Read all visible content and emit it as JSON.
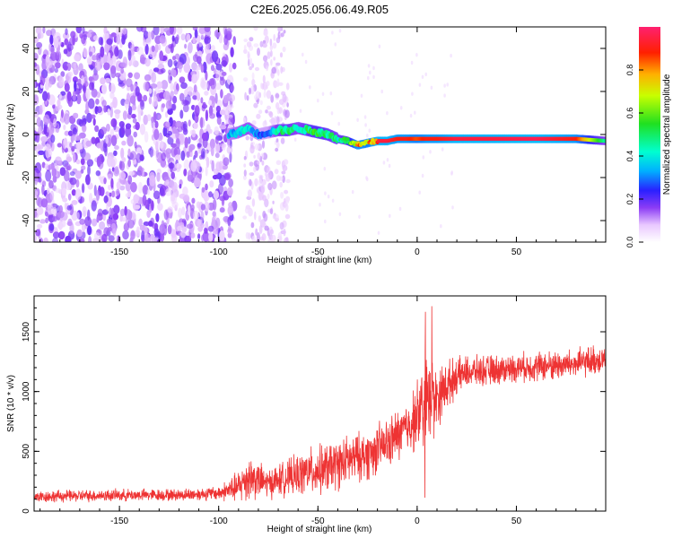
{
  "title": "C2E6.2025.056.06.49.R05",
  "chart_data": [
    {
      "type": "heatmap",
      "xlabel": "Height of straight line (km)",
      "ylabel": "Frequency (Hz)",
      "xlim": [
        -193,
        95
      ],
      "ylim": [
        -50,
        50
      ],
      "xticks": [
        -150,
        -100,
        -50,
        0,
        50
      ],
      "yticks": [
        -40,
        -20,
        0,
        20,
        40
      ],
      "colorbar": {
        "label": "Normalized spectral amplitude",
        "range": [
          0,
          1
        ],
        "ticks": [
          0.0,
          0.2,
          0.4,
          0.6,
          0.8
        ]
      },
      "signal_track": {
        "x": [
          -95,
          -90,
          -85,
          -80,
          -75,
          -70,
          -65,
          -60,
          -55,
          -50,
          -45,
          -40,
          -35,
          -30,
          -25,
          -20,
          -15,
          -10,
          -5,
          0,
          5,
          10,
          20,
          40,
          60,
          80,
          95
        ],
        "freq": [
          0,
          1,
          3,
          0,
          1,
          2,
          2,
          3,
          2,
          1,
          0,
          -2,
          -3,
          -5,
          -4,
          -3,
          -3,
          -2,
          -2,
          -2,
          -2,
          -2,
          -2,
          -2,
          -2,
          -2,
          -3
        ],
        "amplitude": [
          0.35,
          0.4,
          0.45,
          0.3,
          0.3,
          0.5,
          0.55,
          0.45,
          0.55,
          0.6,
          0.55,
          0.5,
          0.6,
          0.9,
          0.85,
          0.95,
          0.95,
          0.9,
          0.9,
          0.85,
          0.9,
          0.9,
          0.95,
          0.95,
          0.97,
          0.9,
          0.45
        ]
      },
      "noise_region_x": [
        -193,
        -92
      ]
    },
    {
      "type": "line",
      "xlabel": "Height of straight line (km)",
      "ylabel": "SNR (10 * v/v)",
      "xlim": [
        -193,
        95
      ],
      "ylim": [
        0,
        1800
      ],
      "xticks": [
        -150,
        -100,
        -50,
        0,
        50
      ],
      "yticks": [
        0,
        500,
        1000,
        1500
      ],
      "series": [
        {
          "color": "#ee3333",
          "x": [
            -193,
            -180,
            -160,
            -140,
            -120,
            -100,
            -90,
            -85,
            -80,
            -75,
            -70,
            -65,
            -60,
            -55,
            -50,
            -45,
            -40,
            -35,
            -30,
            -25,
            -20,
            -15,
            -10,
            -5,
            0,
            5,
            10,
            15,
            20,
            25,
            30,
            40,
            50,
            60,
            70,
            80,
            95
          ],
          "values": [
            120,
            125,
            130,
            135,
            135,
            150,
            200,
            290,
            260,
            230,
            260,
            280,
            300,
            330,
            340,
            360,
            390,
            420,
            450,
            470,
            520,
            560,
            630,
            700,
            800,
            880,
            950,
            1050,
            1130,
            1160,
            1170,
            1180,
            1200,
            1210,
            1220,
            1230,
            1280
          ],
          "spread": [
            60,
            60,
            60,
            60,
            60,
            70,
            160,
            250,
            180,
            150,
            160,
            180,
            200,
            230,
            240,
            250,
            250,
            250,
            240,
            250,
            250,
            250,
            260,
            260,
            350,
            600,
            300,
            250,
            180,
            160,
            150,
            150,
            140,
            150,
            150,
            150,
            150
          ]
        }
      ]
    }
  ],
  "colors": {
    "line": "#ee3333",
    "noise": "#7b2fe0",
    "frame": "#000000"
  }
}
